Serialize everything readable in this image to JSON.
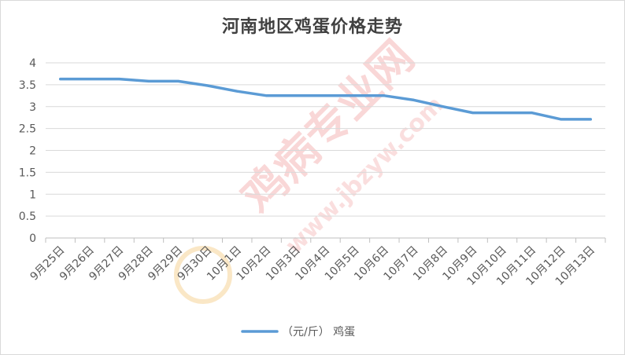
{
  "chart_data": {
    "type": "line",
    "title": "河南地区鸡蛋价格走势",
    "categories": [
      "9月25日",
      "9月26日",
      "9月27日",
      "9月28日",
      "9月29日",
      "9月30日",
      "10月1日",
      "10月2日",
      "10月3日",
      "10月4日",
      "10月5日",
      "10月6日",
      "10月7日",
      "10月8日",
      "10月9日",
      "10月10日",
      "10月11日",
      "10月12日",
      "10月13日"
    ],
    "series": [
      {
        "name": "（元/斤） 鸡蛋",
        "color": "#5b9bd5",
        "values": [
          3.63,
          3.63,
          3.63,
          3.58,
          3.58,
          3.48,
          3.35,
          3.25,
          3.25,
          3.25,
          3.25,
          3.25,
          3.15,
          3.0,
          2.86,
          2.86,
          2.86,
          2.71,
          2.71
        ]
      }
    ],
    "ylim": [
      0,
      4
    ],
    "yticks": [
      "0",
      "0.5",
      "1",
      "1.5",
      "2",
      "2.5",
      "3",
      "3.5",
      "4"
    ],
    "grid": true,
    "legend_position": "bottom",
    "xlabel": "",
    "ylabel": ""
  },
  "watermark": {
    "text_main": "鸡病专业网",
    "text_url": "www.jbzyw.com",
    "color": "#f4b6b6"
  }
}
